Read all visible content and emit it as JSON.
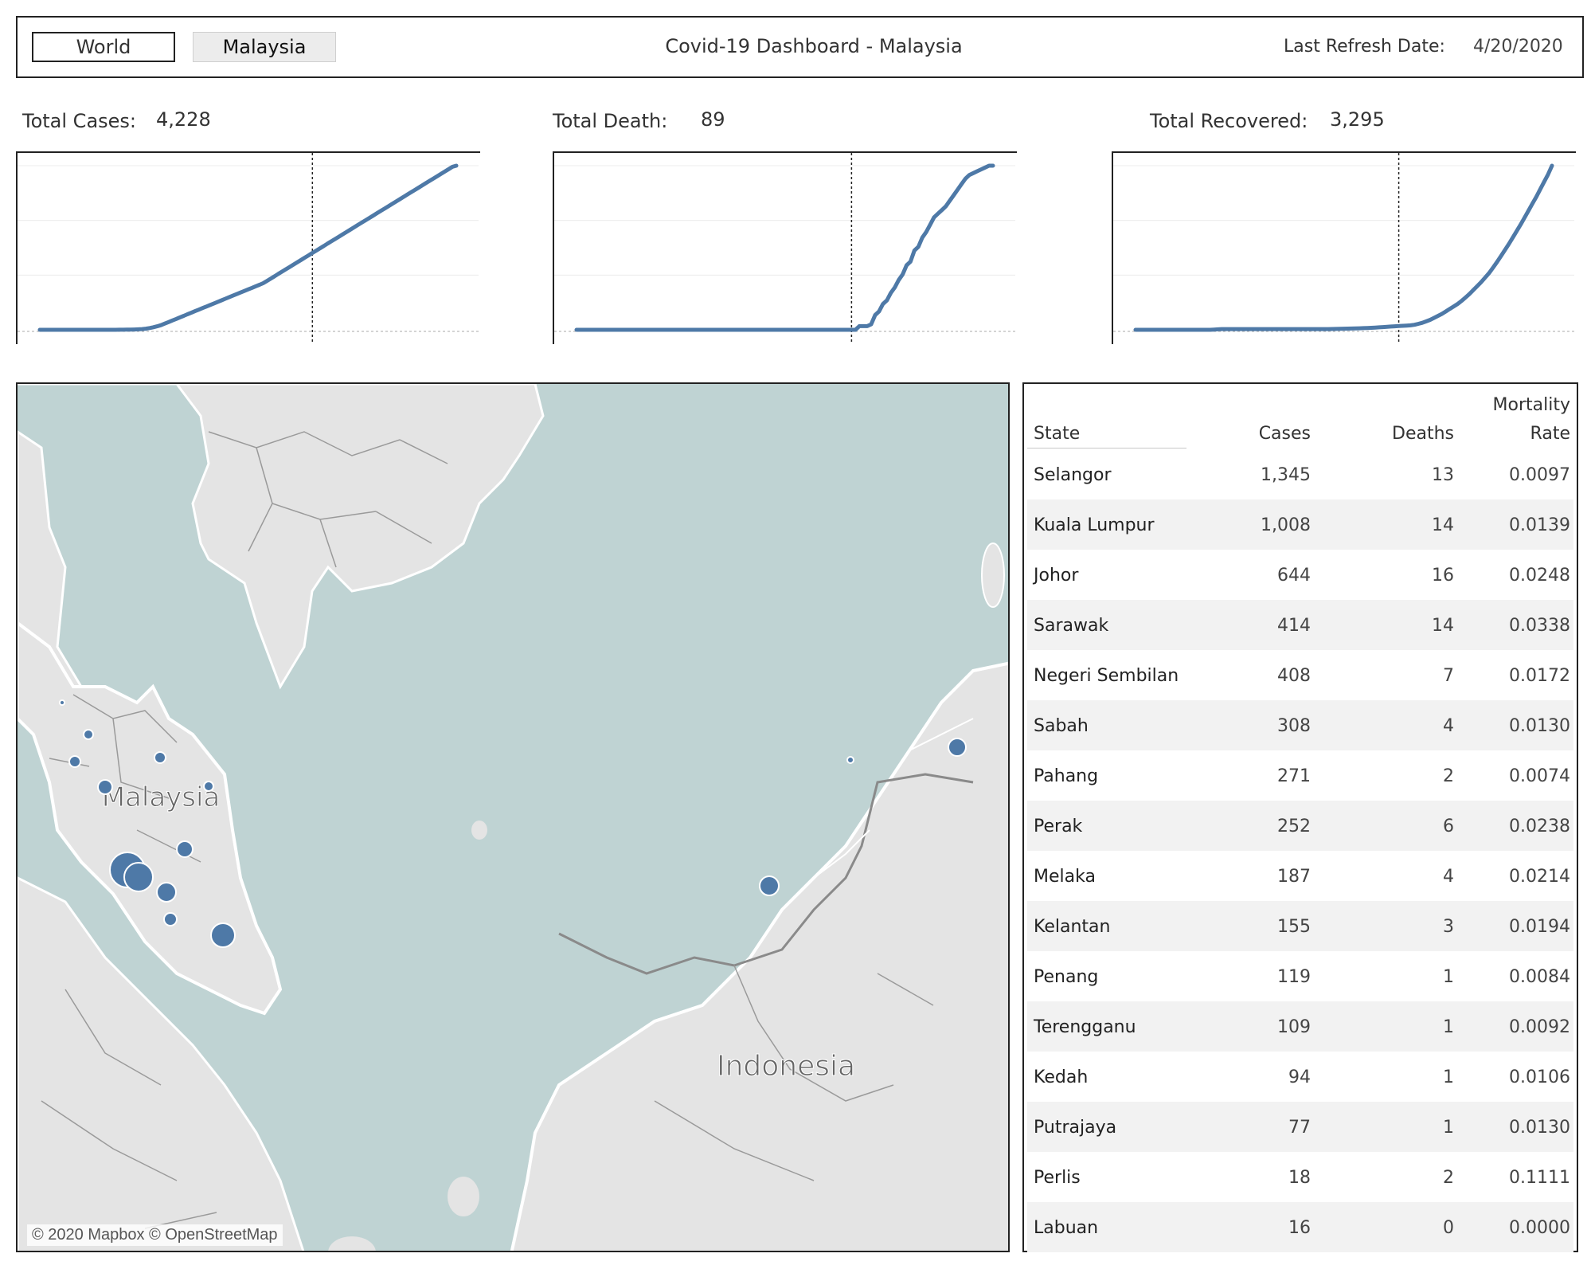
{
  "header": {
    "tabs": [
      {
        "label": "World"
      },
      {
        "label": "Malaysia"
      }
    ],
    "title": "Covid-19 Dashboard - Malaysia",
    "refresh_label": "Last Refresh Date:",
    "refresh_value": "4/20/2020"
  },
  "kpis": [
    {
      "label": "Total Cases:",
      "value": "4,228"
    },
    {
      "label": "Total Death:",
      "value": "89"
    },
    {
      "label": "Total Recovered:",
      "value": "3,295"
    }
  ],
  "line_color": "#4e79a7",
  "map": {
    "labels": [
      "Malaysia",
      "Indonesia"
    ],
    "credit": "© 2020 Mapbox © OpenStreetMap"
  },
  "table": {
    "headers": {
      "state": "State",
      "cases": "Cases",
      "deaths": "Deaths",
      "mortality_1": "Mortality",
      "mortality_2": "Rate"
    },
    "rows": [
      {
        "state": "Selangor",
        "cases": "1,345",
        "deaths": "13",
        "rate": "0.0097"
      },
      {
        "state": "Kuala Lumpur",
        "cases": "1,008",
        "deaths": "14",
        "rate": "0.0139"
      },
      {
        "state": "Johor",
        "cases": "644",
        "deaths": "16",
        "rate": "0.0248"
      },
      {
        "state": "Sarawak",
        "cases": "414",
        "deaths": "14",
        "rate": "0.0338"
      },
      {
        "state": "Negeri Sembilan",
        "cases": "408",
        "deaths": "7",
        "rate": "0.0172"
      },
      {
        "state": "Sabah",
        "cases": "308",
        "deaths": "4",
        "rate": "0.0130"
      },
      {
        "state": "Pahang",
        "cases": "271",
        "deaths": "2",
        "rate": "0.0074"
      },
      {
        "state": "Perak",
        "cases": "252",
        "deaths": "6",
        "rate": "0.0238"
      },
      {
        "state": "Melaka",
        "cases": "187",
        "deaths": "4",
        "rate": "0.0214"
      },
      {
        "state": "Kelantan",
        "cases": "155",
        "deaths": "3",
        "rate": "0.0194"
      },
      {
        "state": "Penang",
        "cases": "119",
        "deaths": "1",
        "rate": "0.0084"
      },
      {
        "state": "Terengganu",
        "cases": "109",
        "deaths": "1",
        "rate": "0.0092"
      },
      {
        "state": "Kedah",
        "cases": "94",
        "deaths": "1",
        "rate": "0.0106"
      },
      {
        "state": "Putrajaya",
        "cases": "77",
        "deaths": "1",
        "rate": "0.0130"
      },
      {
        "state": "Perlis",
        "cases": "18",
        "deaths": "2",
        "rate": "0.1111"
      },
      {
        "state": "Labuan",
        "cases": "16",
        "deaths": "0",
        "rate": "0.0000"
      }
    ]
  },
  "chart_data": [
    {
      "type": "line",
      "series": [
        {
          "values": [
            0,
            0,
            0,
            0,
            0,
            0,
            0,
            0,
            0,
            0,
            0,
            0,
            0,
            0,
            0,
            0,
            0,
            0,
            0,
            1,
            1,
            2,
            3,
            4,
            5,
            8,
            12,
            18,
            28,
            45,
            65,
            90,
            120,
            160,
            200,
            240,
            280,
            320,
            360,
            400,
            440,
            480,
            520,
            560,
            600,
            640,
            680,
            720,
            760,
            800,
            840,
            880,
            920,
            960,
            1000,
            1040,
            1080,
            1120,
            1160,
            1200,
            1260,
            1320,
            1380,
            1440,
            1500,
            1560,
            1620,
            1680,
            1740,
            1800,
            1860,
            1920,
            1980,
            2040,
            2100,
            2160,
            2220,
            2280,
            2340,
            2400,
            2460,
            2520,
            2580,
            2640,
            2700,
            2760,
            2820,
            2880,
            2940,
            3000,
            3060,
            3120,
            3180,
            3240,
            3300,
            3360,
            3420,
            3480,
            3540,
            3600,
            3660,
            3720,
            3780,
            3840,
            3900,
            3960,
            4020,
            4080,
            4140,
            4200,
            4228
          ]
        }
      ],
      "marker_index": 72
    },
    {
      "type": "line",
      "series": [
        {
          "values": [
            0,
            0,
            0,
            0,
            0,
            0,
            0,
            0,
            0,
            0,
            0,
            0,
            0,
            0,
            0,
            0,
            0,
            0,
            0,
            0,
            0,
            0,
            0,
            0,
            0,
            0,
            0,
            0,
            0,
            0,
            0,
            0,
            0,
            0,
            0,
            0,
            0,
            0,
            0,
            0,
            0,
            0,
            0,
            0,
            0,
            0,
            0,
            0,
            0,
            0,
            0,
            0,
            0,
            0,
            0,
            0,
            0,
            0,
            0,
            0,
            0,
            0,
            0,
            0,
            0,
            0,
            0,
            0,
            0,
            0,
            0,
            0,
            2,
            2,
            2,
            3,
            8,
            10,
            14,
            16,
            20,
            23,
            27,
            30,
            35,
            37,
            43,
            45,
            50,
            53,
            57,
            61,
            63,
            65,
            67,
            70,
            73,
            76,
            79,
            82,
            84,
            85,
            86,
            87,
            88,
            89,
            89
          ]
        }
      ],
      "marker_index": 70
    },
    {
      "type": "line",
      "series": [
        {
          "values": [
            0,
            0,
            0,
            0,
            0,
            0,
            0,
            0,
            0,
            0,
            0,
            0,
            0,
            0,
            0,
            0,
            0,
            0,
            0,
            0,
            5,
            10,
            15,
            15,
            15,
            15,
            15,
            15,
            15,
            15,
            15,
            15,
            15,
            15,
            15,
            15,
            15,
            15,
            15,
            15,
            15,
            15,
            15,
            15,
            15,
            15,
            15,
            15,
            15,
            15,
            16,
            18,
            20,
            22,
            24,
            26,
            28,
            30,
            33,
            36,
            40,
            45,
            50,
            55,
            60,
            65,
            70,
            75,
            80,
            85,
            90,
            100,
            120,
            140,
            170,
            200,
            240,
            280,
            320,
            370,
            420,
            470,
            520,
            580,
            650,
            720,
            800,
            880,
            960,
            1050,
            1140,
            1250,
            1360,
            1480,
            1600,
            1720,
            1850,
            1980,
            2110,
            2250,
            2390,
            2530,
            2670,
            2820,
            2970,
            3120,
            3295
          ]
        }
      ],
      "marker_index": 67
    }
  ]
}
